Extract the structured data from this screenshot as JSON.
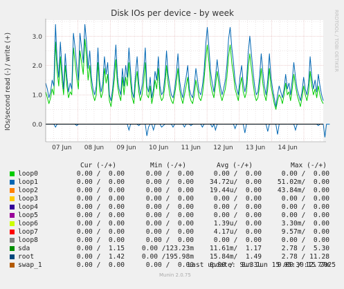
{
  "chart_data": {
    "type": "line",
    "title": "Disk IOs per device - by week",
    "ylabel": "IOs/second read (-) / write (+)",
    "watermark": "RRDTOOL / TOBI OETIKER",
    "ylim": [
      -0.6,
      3.55
    ],
    "yticks": [
      "0.0",
      "1.0",
      "2.0",
      "3.0"
    ],
    "ytick_values": [
      0,
      1,
      2,
      3
    ],
    "xticks": [
      "07 Jun",
      "08 Jun",
      "09 Jun",
      "10 Jun",
      "11 Jun",
      "12 Jun",
      "13 Jun",
      "14 Jun"
    ],
    "x_range_days": [
      0,
      8.6
    ],
    "xtick_days": [
      0.5,
      1.5,
      2.5,
      3.5,
      4.5,
      5.5,
      6.5,
      7.5
    ],
    "grid": true,
    "colors": {
      "sda": "#00CC00",
      "root": "#0066B3",
      "zero_line": "#000000",
      "grid_major": "#e0b0b0",
      "grid_minor": "#d8c8c8"
    },
    "series": [
      {
        "name": "root",
        "color": "#0066B3",
        "write": [
          1.4,
          1.2,
          0.9,
          1.1,
          1.5,
          1.3,
          3.4,
          2.2,
          1.6,
          2.8,
          1.9,
          1.2,
          2.4,
          1.6,
          1.1,
          1.4,
          1.2,
          3.1,
          2.6,
          2.0,
          1.5,
          3.1,
          2.6,
          2.1,
          3.4,
          2.8,
          1.9,
          2.5,
          1.6,
          1.2,
          1.0,
          1.3,
          2.6,
          1.5,
          1.1,
          1.4,
          2.3,
          1.7,
          2.1,
          1.0,
          0.8,
          1.2,
          1.9,
          2.7,
          1.6,
          1.2,
          1.0,
          1.9,
          1.3,
          2.0,
          1.6,
          2.6,
          1.8,
          1.1,
          0.9,
          1.7,
          2.3,
          1.4,
          1.0,
          1.3,
          1.8,
          2.6,
          1.3,
          1.1,
          1.6,
          0.9,
          1.2,
          1.8,
          1.5,
          2.3,
          1.3,
          1.0,
          1.1,
          1.6,
          2.5,
          1.7,
          1.3,
          1.0,
          0.9,
          1.2,
          1.7,
          2.4,
          1.5,
          1.1,
          0.9,
          1.3,
          1.6,
          2.0,
          1.2,
          1.0,
          0.9,
          1.3,
          1.9,
          1.5,
          1.1,
          1.0,
          1.3,
          1.8,
          2.7,
          3.3,
          2.6,
          1.8,
          1.4,
          1.1,
          1.6,
          2.2,
          1.7,
          1.3,
          1.0,
          1.2,
          1.5,
          2.0,
          2.9,
          3.3,
          2.6,
          2.1,
          1.5,
          1.2,
          1.0,
          1.6,
          2.0,
          1.4,
          1.1,
          1.4,
          2.4,
          3.0,
          2.4,
          1.8,
          1.3,
          1.0,
          1.1,
          1.6,
          2.4,
          1.8,
          1.3,
          1.0,
          1.5,
          2.4,
          1.6,
          1.2,
          0.9,
          0.6,
          1.0,
          1.3,
          1.1,
          0.9,
          1.2,
          1.7,
          1.2,
          1.4,
          1.0,
          1.5,
          2.1,
          1.6,
          1.2,
          1.0,
          0.8,
          1.1,
          1.6,
          1.2,
          1.0,
          1.4,
          2.3,
          1.6,
          1.2,
          1.5,
          1.1,
          1.7,
          1.3,
          1.0,
          0.8
        ],
        "read": [
          0,
          0,
          0,
          0,
          0,
          0,
          -0.1,
          0,
          0,
          0,
          0,
          0,
          0,
          0,
          0,
          0,
          0,
          0,
          0,
          -0.05,
          0,
          0,
          0,
          0,
          0,
          0,
          0,
          0,
          0,
          0,
          0,
          0,
          0,
          0,
          0,
          0,
          0,
          0,
          0,
          0,
          0,
          0,
          0,
          0,
          0,
          0,
          0,
          0,
          0,
          0,
          0,
          -0.2,
          0,
          0,
          0,
          0,
          0,
          -0.05,
          0,
          0,
          0,
          0,
          -0.4,
          -0.1,
          0,
          0,
          -0.2,
          0,
          0,
          0,
          0,
          -0.1,
          -0.05,
          0,
          0,
          0,
          0,
          0,
          -0.1,
          0,
          0,
          0,
          0,
          0,
          0,
          -0.1,
          0,
          0,
          0,
          -0.05,
          0,
          0,
          0,
          0,
          0,
          0,
          -0.1,
          0,
          0,
          0,
          0,
          0,
          -0.1,
          0,
          -0.2,
          0,
          0,
          0,
          0,
          0,
          0,
          0,
          0,
          0,
          0,
          0,
          -0.15,
          0,
          0,
          0,
          0,
          0,
          -0.3,
          0,
          0,
          0,
          0,
          0,
          0,
          0,
          0,
          0,
          0,
          0,
          0,
          0,
          -0.25,
          0,
          0,
          0,
          0,
          0,
          -0.35,
          0,
          0,
          0,
          0,
          0,
          0,
          0,
          0,
          0,
          0,
          -0.2,
          0,
          0,
          0,
          0,
          0,
          0,
          0,
          0,
          0,
          0,
          0,
          0,
          0,
          -0.05,
          0,
          0,
          0,
          -0.45,
          0,
          0,
          0
        ]
      },
      {
        "name": "sda",
        "color": "#00CC00",
        "write": [
          1.1,
          0.9,
          0.7,
          0.9,
          1.2,
          1.0,
          2.8,
          1.8,
          1.3,
          2.3,
          1.5,
          1.0,
          2.0,
          1.3,
          0.9,
          1.1,
          1.0,
          2.6,
          2.1,
          1.6,
          1.2,
          2.5,
          2.1,
          1.7,
          2.9,
          2.3,
          1.5,
          2.0,
          1.3,
          1.0,
          0.8,
          1.0,
          2.1,
          1.2,
          0.9,
          1.1,
          1.9,
          1.4,
          1.7,
          0.8,
          0.6,
          1.0,
          1.5,
          2.2,
          1.3,
          1.0,
          0.8,
          1.6,
          1.0,
          1.6,
          1.3,
          2.1,
          1.4,
          0.9,
          0.7,
          1.4,
          1.8,
          1.1,
          0.8,
          1.0,
          1.4,
          2.1,
          1.0,
          0.9,
          1.3,
          0.7,
          1.0,
          1.5,
          1.2,
          1.9,
          1.0,
          0.8,
          0.9,
          1.3,
          2.0,
          1.4,
          1.0,
          0.8,
          0.7,
          1.0,
          1.4,
          1.9,
          1.2,
          0.9,
          0.7,
          1.0,
          1.3,
          1.6,
          1.0,
          0.8,
          0.7,
          1.0,
          1.5,
          1.2,
          0.9,
          0.8,
          1.0,
          1.5,
          2.2,
          2.7,
          2.1,
          1.4,
          1.1,
          0.9,
          1.3,
          1.8,
          1.4,
          1.0,
          0.8,
          1.0,
          1.2,
          1.6,
          2.3,
          2.7,
          2.1,
          1.7,
          1.2,
          1.0,
          0.8,
          1.3,
          1.6,
          1.1,
          0.9,
          1.1,
          1.9,
          2.4,
          1.9,
          1.4,
          1.0,
          0.8,
          0.9,
          1.3,
          1.9,
          1.4,
          1.0,
          0.8,
          1.2,
          1.9,
          1.3,
          1.0,
          0.7,
          0.5,
          0.8,
          1.0,
          0.9,
          0.7,
          1.0,
          1.4,
          1.0,
          1.1,
          0.8,
          1.2,
          1.7,
          1.3,
          1.0,
          0.8,
          0.6,
          0.9,
          1.3,
          1.0,
          0.8,
          1.1,
          1.8,
          1.3,
          1.0,
          1.2,
          0.9,
          1.3,
          1.0,
          0.8,
          0.7
        ]
      }
    ],
    "legend": {
      "headers": {
        "cur": "Cur (-/+)",
        "min": "Min (-/+)",
        "avg": "Avg (-/+)",
        "max": "Max (-/+)"
      },
      "rows": [
        {
          "name": "loop0",
          "color": "#00CC00",
          "cur": "0.00 /  0.00",
          "min": "0.00 /  0.00",
          "avg": "0.00 /  0.00",
          "max": "0.00 /  0.00"
        },
        {
          "name": "loop1",
          "color": "#0066B3",
          "cur": "0.00 /  0.00",
          "min": "0.00 /  0.00",
          "avg": "34.72u/  0.00",
          "max": "51.02m/  0.00"
        },
        {
          "name": "loop2",
          "color": "#FF8000",
          "cur": "0.00 /  0.00",
          "min": "0.00 /  0.00",
          "avg": "19.44u/  0.00",
          "max": "43.84m/  0.00"
        },
        {
          "name": "loop3",
          "color": "#FFCC00",
          "cur": "0.00 /  0.00",
          "min": "0.00 /  0.00",
          "avg": "0.00 /  0.00",
          "max": "0.00 /  0.00"
        },
        {
          "name": "loop4",
          "color": "#330099",
          "cur": "0.00 /  0.00",
          "min": "0.00 /  0.00",
          "avg": "0.00 /  0.00",
          "max": "0.00 /  0.00"
        },
        {
          "name": "loop5",
          "color": "#990099",
          "cur": "0.00 /  0.00",
          "min": "0.00 /  0.00",
          "avg": "0.00 /  0.00",
          "max": "0.00 /  0.00"
        },
        {
          "name": "loop6",
          "color": "#CCFF00",
          "cur": "0.00 /  0.00",
          "min": "0.00 /  0.00",
          "avg": "1.39u/  0.00",
          "max": "3.30m/  0.00"
        },
        {
          "name": "loop7",
          "color": "#FF0000",
          "cur": "0.00 /  0.00",
          "min": "0.00 /  0.00",
          "avg": "4.17u/  0.00",
          "max": "9.57m/  0.00"
        },
        {
          "name": "loop8",
          "color": "#808080",
          "cur": "0.00 /  0.00",
          "min": "0.00 /  0.00",
          "avg": "0.00 /  0.00",
          "max": "0.00 /  0.00"
        },
        {
          "name": "sda",
          "color": "#008F00",
          "cur": "0.00 /  1.15",
          "min": "0.00 /123.23m",
          "avg": "11.61m/  1.17",
          "max": "2.78 /  5.30"
        },
        {
          "name": "root",
          "color": "#00487D",
          "cur": "0.00 /  1.42",
          "min": "0.00 /195.98m",
          "avg": "15.84m/  1.49",
          "max": "2.78 / 11.28"
        },
        {
          "name": "swap_1",
          "color": "#B35A00",
          "cur": "0.00 /  0.00",
          "min": "0.00 /  0.00",
          "avg": "0.00 /  8.33u",
          "max": "0.00 / 12.77m"
        }
      ]
    },
    "last_update": "Last update: Sun Jun 15 05:30:15 2025",
    "footer": "Munin 2.0.75"
  }
}
